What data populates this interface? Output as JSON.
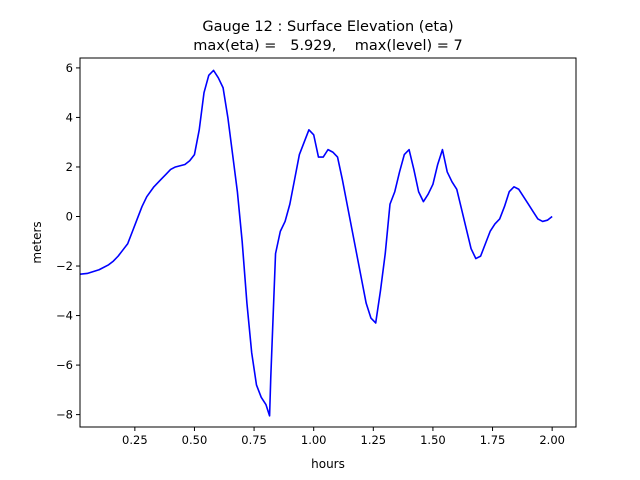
{
  "chart_data": {
    "type": "line",
    "title": "Gauge 12 : Surface Elevation (eta)",
    "subtitle": "max(eta) =   5.929,    max(level) = 7",
    "xlabel": "hours",
    "ylabel": "meters",
    "xlim": [
      0.02,
      2.1
    ],
    "ylim": [
      -8.5,
      6.4
    ],
    "xticks": [
      0.25,
      0.5,
      0.75,
      1.0,
      1.25,
      1.5,
      1.75,
      2.0
    ],
    "xtick_labels": [
      "0.25",
      "0.50",
      "0.75",
      "1.00",
      "1.25",
      "1.50",
      "1.75",
      "2.00"
    ],
    "yticks": [
      -8,
      -6,
      -4,
      -2,
      0,
      2,
      4,
      6
    ],
    "ytick_labels": [
      "−8",
      "−6",
      "−4",
      "−2",
      "0",
      "2",
      "4",
      "6"
    ],
    "grid": false,
    "series": [
      {
        "color": "#0000ff",
        "x": [
          0.0,
          0.05,
          0.1,
          0.14,
          0.16,
          0.18,
          0.2,
          0.22,
          0.24,
          0.26,
          0.28,
          0.3,
          0.33,
          0.36,
          0.38,
          0.4,
          0.42,
          0.44,
          0.46,
          0.48,
          0.5,
          0.52,
          0.54,
          0.56,
          0.58,
          0.6,
          0.62,
          0.64,
          0.66,
          0.68,
          0.7,
          0.72,
          0.74,
          0.76,
          0.78,
          0.8,
          0.815,
          0.82,
          0.83,
          0.84,
          0.86,
          0.88,
          0.9,
          0.92,
          0.94,
          0.96,
          0.98,
          1.0,
          1.02,
          1.04,
          1.06,
          1.08,
          1.1,
          1.12,
          1.14,
          1.16,
          1.18,
          1.2,
          1.22,
          1.24,
          1.26,
          1.28,
          1.3,
          1.31,
          1.32,
          1.34,
          1.36,
          1.38,
          1.4,
          1.42,
          1.44,
          1.46,
          1.48,
          1.5,
          1.52,
          1.54,
          1.56,
          1.58,
          1.6,
          1.62,
          1.64,
          1.66,
          1.68,
          1.7,
          1.72,
          1.74,
          1.76,
          1.78,
          1.8,
          1.82,
          1.84,
          1.86,
          1.88,
          1.9,
          1.92,
          1.94,
          1.96,
          1.98,
          2.0
        ],
        "values": [
          -2.35,
          -2.3,
          -2.15,
          -1.95,
          -1.8,
          -1.6,
          -1.35,
          -1.1,
          -0.6,
          -0.1,
          0.4,
          0.8,
          1.2,
          1.5,
          1.7,
          1.9,
          2.0,
          2.05,
          2.1,
          2.25,
          2.5,
          3.5,
          5.0,
          5.7,
          5.9,
          5.6,
          5.2,
          4.0,
          2.5,
          1.0,
          -1.0,
          -3.5,
          -5.5,
          -6.8,
          -7.3,
          -7.6,
          -8.05,
          -6.5,
          -4.0,
          -1.5,
          -0.6,
          -0.2,
          0.5,
          1.5,
          2.5,
          3.0,
          3.5,
          3.3,
          2.4,
          2.4,
          2.7,
          2.6,
          2.4,
          1.5,
          0.5,
          -0.5,
          -1.5,
          -2.5,
          -3.5,
          -4.1,
          -4.3,
          -3.0,
          -1.5,
          -0.5,
          0.5,
          1.0,
          1.8,
          2.5,
          2.7,
          1.9,
          1.0,
          0.6,
          0.9,
          1.3,
          2.1,
          2.7,
          1.8,
          1.4,
          1.1,
          0.3,
          -0.5,
          -1.3,
          -1.7,
          -1.6,
          -1.1,
          -0.6,
          -0.3,
          -0.1,
          0.4,
          1.0,
          1.2,
          1.1,
          0.8,
          0.5,
          0.2,
          -0.1,
          -0.2,
          -0.15,
          0.0
        ]
      }
    ]
  }
}
